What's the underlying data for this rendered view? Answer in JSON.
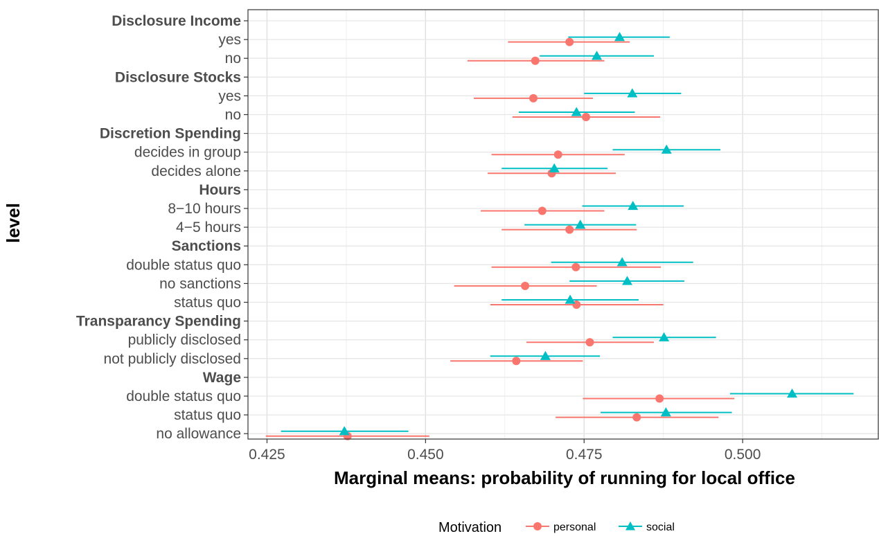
{
  "chart_data": {
    "type": "scatter",
    "xlabel": "Marginal means: probability of running for local office",
    "ylabel": "level",
    "xlim": [
      0.422,
      0.5215
    ],
    "x_ticks": [
      "0.425",
      "0.450",
      "0.475",
      "0.500"
    ],
    "x_tick_values": [
      0.425,
      0.45,
      0.475,
      0.5
    ],
    "grid": true,
    "legend": {
      "title": "Motivation",
      "placement": "bottom",
      "entries": [
        {
          "name": "personal",
          "color": "#F8766D",
          "shape": "circle"
        },
        {
          "name": "social",
          "color": "#00BFC4",
          "shape": "triangle"
        }
      ]
    },
    "rows": [
      {
        "label": "Disclosure Income",
        "header": true
      },
      {
        "label": "yes",
        "header": false,
        "personal": {
          "mean": 0.4727,
          "lo": 0.463,
          "hi": 0.4822
        },
        "social": {
          "mean": 0.4806,
          "lo": 0.4725,
          "hi": 0.4885
        }
      },
      {
        "label": "no",
        "header": false,
        "personal": {
          "mean": 0.4673,
          "lo": 0.4566,
          "hi": 0.4782
        },
        "social": {
          "mean": 0.477,
          "lo": 0.468,
          "hi": 0.486
        }
      },
      {
        "label": "Disclosure Stocks",
        "header": true
      },
      {
        "label": "yes",
        "header": false,
        "personal": {
          "mean": 0.467,
          "lo": 0.4576,
          "hi": 0.4764
        },
        "social": {
          "mean": 0.4826,
          "lo": 0.475,
          "hi": 0.4903
        }
      },
      {
        "label": "no",
        "header": false,
        "personal": {
          "mean": 0.4753,
          "lo": 0.4637,
          "hi": 0.487
        },
        "social": {
          "mean": 0.4738,
          "lo": 0.4647,
          "hi": 0.483
        }
      },
      {
        "label": "Discretion Spending",
        "header": true
      },
      {
        "label": "decides in group",
        "header": false,
        "personal": {
          "mean": 0.4709,
          "lo": 0.4604,
          "hi": 0.4814
        },
        "social": {
          "mean": 0.488,
          "lo": 0.4795,
          "hi": 0.4965
        }
      },
      {
        "label": "decides alone",
        "header": false,
        "personal": {
          "mean": 0.4699,
          "lo": 0.4598,
          "hi": 0.48
        },
        "social": {
          "mean": 0.4703,
          "lo": 0.462,
          "hi": 0.4787
        }
      },
      {
        "label": "Hours",
        "header": true
      },
      {
        "label": "8−10 hours",
        "header": false,
        "personal": {
          "mean": 0.4684,
          "lo": 0.4587,
          "hi": 0.4782
        },
        "social": {
          "mean": 0.4827,
          "lo": 0.4747,
          "hi": 0.4907
        }
      },
      {
        "label": "4−5 hours",
        "header": false,
        "personal": {
          "mean": 0.4727,
          "lo": 0.462,
          "hi": 0.4833
        },
        "social": {
          "mean": 0.4744,
          "lo": 0.4656,
          "hi": 0.4832
        }
      },
      {
        "label": "Sanctions",
        "header": true
      },
      {
        "label": "double status quo",
        "header": false,
        "personal": {
          "mean": 0.4737,
          "lo": 0.4604,
          "hi": 0.4871
        },
        "social": {
          "mean": 0.481,
          "lo": 0.4698,
          "hi": 0.4922
        }
      },
      {
        "label": "no sanctions",
        "header": false,
        "personal": {
          "mean": 0.4657,
          "lo": 0.4545,
          "hi": 0.477
        },
        "social": {
          "mean": 0.4818,
          "lo": 0.4727,
          "hi": 0.4908
        }
      },
      {
        "label": "status quo",
        "header": false,
        "personal": {
          "mean": 0.4738,
          "lo": 0.4602,
          "hi": 0.4875
        },
        "social": {
          "mean": 0.4728,
          "lo": 0.462,
          "hi": 0.4836
        }
      },
      {
        "label": "Transparancy Spending",
        "header": true
      },
      {
        "label": "publicly disclosed",
        "header": false,
        "personal": {
          "mean": 0.4759,
          "lo": 0.4659,
          "hi": 0.486
        },
        "social": {
          "mean": 0.4876,
          "lo": 0.4795,
          "hi": 0.4958
        }
      },
      {
        "label": "not publicly disclosed",
        "header": false,
        "personal": {
          "mean": 0.4643,
          "lo": 0.4539,
          "hi": 0.4748
        },
        "social": {
          "mean": 0.4689,
          "lo": 0.4602,
          "hi": 0.4775
        }
      },
      {
        "label": "Wage",
        "header": true
      },
      {
        "label": "double status quo",
        "header": false,
        "personal": {
          "mean": 0.4869,
          "lo": 0.4748,
          "hi": 0.4987
        },
        "social": {
          "mean": 0.5078,
          "lo": 0.498,
          "hi": 0.5175
        }
      },
      {
        "label": "status quo",
        "header": false,
        "personal": {
          "mean": 0.4833,
          "lo": 0.4705,
          "hi": 0.4962
        },
        "social": {
          "mean": 0.4879,
          "lo": 0.4776,
          "hi": 0.4983
        }
      },
      {
        "label": "no allowance",
        "header": false,
        "personal": {
          "mean": 0.4377,
          "lo": 0.4248,
          "hi": 0.4506
        },
        "social": {
          "mean": 0.4372,
          "lo": 0.4272,
          "hi": 0.4473
        }
      }
    ]
  }
}
